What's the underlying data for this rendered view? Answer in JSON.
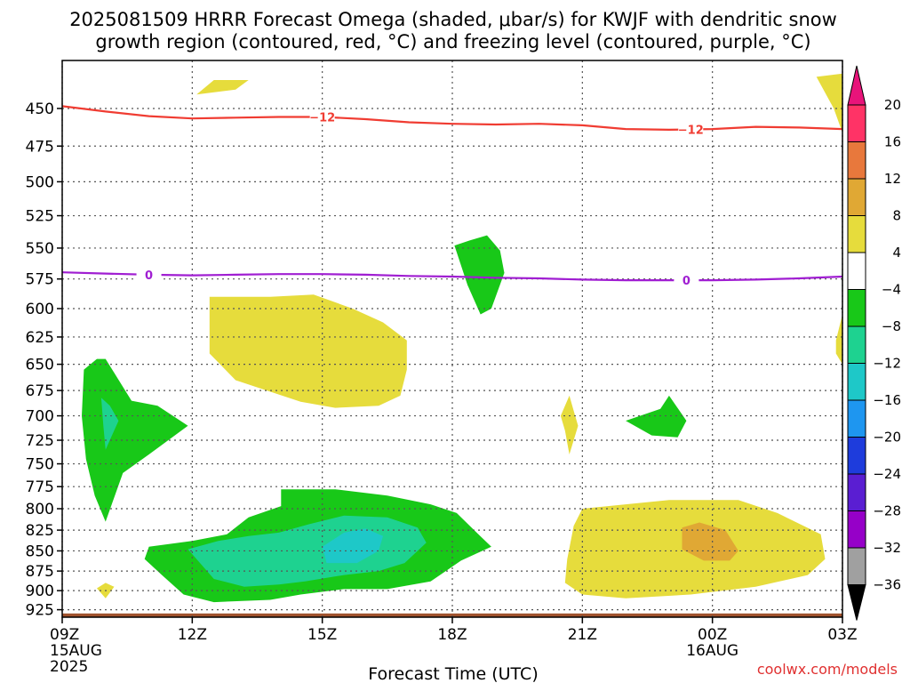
{
  "title_line1": "2025081509 HRRR Forecast Omega (shaded, μbar/s) for KWJF with dendritic snow",
  "title_line2": "growth region (contoured, red, °C) and freezing level (contoured, purple, °C)",
  "credit": "coolwx.com/models",
  "chart_data": {
    "type": "heatmap",
    "title": "2025081509 HRRR Forecast Omega (shaded, μbar/s) for KWJF with dendritic snow growth region (contoured, red, °C) and freezing level (contoured, purple, °C)",
    "xlabel": "Forecast Time (UTC)",
    "ylabel": "",
    "x_ticks": [
      {
        "hour": 0,
        "label": "09Z",
        "sub1": "15AUG",
        "sub2": "2025"
      },
      {
        "hour": 3,
        "label": "12Z",
        "sub1": "",
        "sub2": ""
      },
      {
        "hour": 6,
        "label": "15Z",
        "sub1": "",
        "sub2": ""
      },
      {
        "hour": 9,
        "label": "18Z",
        "sub1": "",
        "sub2": ""
      },
      {
        "hour": 12,
        "label": "21Z",
        "sub1": "",
        "sub2": ""
      },
      {
        "hour": 15,
        "label": "00Z",
        "sub1": "16AUG",
        "sub2": ""
      },
      {
        "hour": 18,
        "label": "03Z",
        "sub1": "",
        "sub2": ""
      }
    ],
    "x_range_hours": [
      0,
      18
    ],
    "y_ticks_hpa": [
      450,
      475,
      500,
      525,
      550,
      575,
      600,
      625,
      650,
      675,
      700,
      725,
      750,
      775,
      800,
      825,
      850,
      875,
      900,
      925
    ],
    "y_range_hpa": [
      420,
      935
    ],
    "y_scale": "log",
    "grid": "dotted",
    "colorbar": {
      "labels": [
        "20",
        "16",
        "12",
        "8",
        "4",
        "−4",
        "−8",
        "−12",
        "−16",
        "−20",
        "−24",
        "−28",
        "−32",
        "−36"
      ],
      "colors": [
        "#ff3366",
        "#e8783c",
        "#e0a834",
        "#e6dc3c",
        "#ffffff",
        "#18c818",
        "#1ed290",
        "#1ec8c8",
        "#1e96f0",
        "#1e3cdc",
        "#5a1ed2",
        "#9600c8",
        "#a0a0a0"
      ],
      "arrow_top": "#e8147a",
      "arrow_bottom": "#000000"
    },
    "shaded_regions": [
      {
        "label": "4 to 8",
        "color": "#e6dc3c",
        "pts": [
          [
            3.1,
            441
          ],
          [
            4.0,
            438
          ],
          [
            4.3,
            432
          ],
          [
            3.5,
            432
          ]
        ]
      },
      {
        "label": "4 to 8",
        "color": "#e6dc3c",
        "pts": [
          [
            18.0,
            428
          ],
          [
            18.05,
            470
          ],
          [
            17.8,
            450
          ],
          [
            17.4,
            430
          ]
        ]
      },
      {
        "label": "4 to 8",
        "color": "#e6dc3c",
        "pts": [
          [
            3.4,
            590
          ],
          [
            3.4,
            640
          ],
          [
            4.0,
            665
          ],
          [
            5.5,
            686
          ],
          [
            6.3,
            692
          ],
          [
            7.3,
            690
          ],
          [
            7.8,
            680
          ],
          [
            7.95,
            655
          ],
          [
            7.95,
            628
          ],
          [
            7.4,
            612
          ],
          [
            6.7,
            600
          ],
          [
            5.8,
            588
          ],
          [
            4.8,
            590
          ]
        ]
      },
      {
        "label": "4 to 8",
        "color": "#e6dc3c",
        "pts": [
          [
            11.7,
            680
          ],
          [
            11.8,
            695
          ],
          [
            11.9,
            710
          ],
          [
            11.7,
            740
          ],
          [
            11.6,
            715
          ],
          [
            11.5,
            700
          ]
        ]
      },
      {
        "label": "4 to 8",
        "color": "#e6dc3c",
        "pts": [
          [
            18.0,
            605
          ],
          [
            17.85,
            628
          ],
          [
            17.85,
            640
          ],
          [
            18.0,
            650
          ]
        ]
      },
      {
        "label": "4 to 8",
        "color": "#e6dc3c",
        "pts": [
          [
            1.0,
            890
          ],
          [
            1.2,
            895
          ],
          [
            1.0,
            910
          ],
          [
            0.8,
            897
          ]
        ]
      },
      {
        "label": "4 to 8",
        "color": "#e6dc3c",
        "pts": [
          [
            12.0,
            800
          ],
          [
            11.8,
            820
          ],
          [
            11.65,
            860
          ],
          [
            11.6,
            890
          ],
          [
            12.0,
            905
          ],
          [
            13.0,
            910
          ],
          [
            14.5,
            905
          ],
          [
            16.0,
            895
          ],
          [
            17.2,
            880
          ],
          [
            17.6,
            860
          ],
          [
            17.5,
            830
          ],
          [
            16.5,
            805
          ],
          [
            15.6,
            790
          ],
          [
            14.0,
            790
          ]
        ]
      },
      {
        "label": "8 to 12",
        "color": "#e0a834",
        "pts": [
          [
            14.3,
            822
          ],
          [
            14.3,
            848
          ],
          [
            14.8,
            862
          ],
          [
            15.4,
            862
          ],
          [
            15.6,
            850
          ],
          [
            15.3,
            825
          ],
          [
            14.7,
            816
          ]
        ]
      },
      {
        "label": "-8 to -4",
        "color": "#18c818",
        "pts": [
          [
            0.5,
            655
          ],
          [
            0.45,
            700
          ],
          [
            0.55,
            745
          ],
          [
            0.75,
            785
          ],
          [
            1.0,
            815
          ],
          [
            1.4,
            760
          ],
          [
            2.0,
            740
          ],
          [
            2.9,
            710
          ],
          [
            2.2,
            690
          ],
          [
            1.6,
            685
          ],
          [
            1.0,
            645
          ],
          [
            0.8,
            645
          ]
        ]
      },
      {
        "label": "-8 to -4",
        "color": "#18c818",
        "pts": [
          [
            1.9,
            860
          ],
          [
            2.3,
            880
          ],
          [
            2.8,
            905
          ],
          [
            3.5,
            915
          ],
          [
            4.8,
            912
          ],
          [
            5.5,
            905
          ],
          [
            6.5,
            898
          ],
          [
            7.5,
            898
          ],
          [
            8.5,
            888
          ],
          [
            9.2,
            862
          ],
          [
            9.9,
            845
          ],
          [
            9.6,
            830
          ],
          [
            9.1,
            805
          ],
          [
            8.5,
            795
          ],
          [
            7.5,
            785
          ],
          [
            6.3,
            778
          ],
          [
            5.05,
            778
          ],
          [
            5.05,
            797
          ],
          [
            4.3,
            810
          ],
          [
            3.8,
            830
          ],
          [
            3.0,
            838
          ],
          [
            2.0,
            845
          ]
        ]
      },
      {
        "label": "-8 to -4",
        "color": "#18c818",
        "pts": [
          [
            9.05,
            548
          ],
          [
            9.35,
            580
          ],
          [
            9.65,
            605
          ],
          [
            9.9,
            600
          ],
          [
            10.2,
            570
          ],
          [
            10.1,
            552
          ],
          [
            9.8,
            540
          ],
          [
            9.4,
            544
          ]
        ]
      },
      {
        "label": "-8 to -4",
        "color": "#18c818",
        "pts": [
          [
            13.0,
            705
          ],
          [
            13.6,
            720
          ],
          [
            14.2,
            722
          ],
          [
            14.4,
            705
          ],
          [
            14.0,
            680
          ],
          [
            13.8,
            693
          ]
        ]
      },
      {
        "label": "-12 to -8",
        "color": "#1ed290",
        "pts": [
          [
            0.9,
            682
          ],
          [
            0.95,
            710
          ],
          [
            1.0,
            735
          ],
          [
            1.3,
            705
          ],
          [
            1.1,
            690
          ]
        ]
      },
      {
        "label": "-12 to -8",
        "color": "#1ed290",
        "pts": [
          [
            2.9,
            848
          ],
          [
            3.5,
            885
          ],
          [
            4.2,
            895
          ],
          [
            5.0,
            892
          ],
          [
            5.6,
            888
          ],
          [
            6.5,
            880
          ],
          [
            7.3,
            875
          ],
          [
            7.9,
            865
          ],
          [
            8.4,
            840
          ],
          [
            8.2,
            822
          ],
          [
            7.5,
            810
          ],
          [
            6.5,
            808
          ],
          [
            5.7,
            818
          ],
          [
            5.0,
            828
          ],
          [
            4.3,
            832
          ],
          [
            3.6,
            838
          ]
        ]
      },
      {
        "label": "-16 to -12",
        "color": "#1ec8c8",
        "pts": [
          [
            6.0,
            845
          ],
          [
            6.1,
            865
          ],
          [
            6.8,
            865
          ],
          [
            7.3,
            850
          ],
          [
            7.4,
            832
          ],
          [
            7.0,
            823
          ],
          [
            6.5,
            828
          ]
        ]
      }
    ],
    "contours": [
      {
        "name": "dendritic snow growth (-12 °C)",
        "color": "#f03c32",
        "label": "−12",
        "label_at": [
          6.0,
          14.5
        ],
        "pts": [
          [
            0,
            448.5
          ],
          [
            1,
            452
          ],
          [
            2,
            455
          ],
          [
            3,
            456.5
          ],
          [
            4,
            456
          ],
          [
            5,
            455.5
          ],
          [
            6,
            455.5
          ],
          [
            7,
            457
          ],
          [
            8,
            459
          ],
          [
            9,
            460
          ],
          [
            10,
            460.5
          ],
          [
            11,
            460
          ],
          [
            12,
            461
          ],
          [
            13,
            463.5
          ],
          [
            14,
            464
          ],
          [
            15,
            463.5
          ],
          [
            16,
            462
          ],
          [
            17,
            462.5
          ],
          [
            18,
            463.5
          ]
        ]
      },
      {
        "name": "freezing level (0 °C)",
        "color": "#a01ed2",
        "label": "0",
        "label_at": [
          2.0,
          14.4
        ],
        "pts": [
          [
            0,
            569.5
          ],
          [
            1,
            570.5
          ],
          [
            2,
            571.5
          ],
          [
            3,
            572
          ],
          [
            4,
            571.5
          ],
          [
            5,
            571
          ],
          [
            6,
            571
          ],
          [
            7,
            571.5
          ],
          [
            8,
            572.5
          ],
          [
            9,
            573
          ],
          [
            10,
            574
          ],
          [
            11,
            574.5
          ],
          [
            12,
            575.5
          ],
          [
            13,
            576
          ],
          [
            14,
            576
          ],
          [
            15,
            576
          ],
          [
            16,
            575.5
          ],
          [
            17,
            574.5
          ],
          [
            18,
            573
          ]
        ]
      }
    ],
    "surface_pressure": 930
  }
}
